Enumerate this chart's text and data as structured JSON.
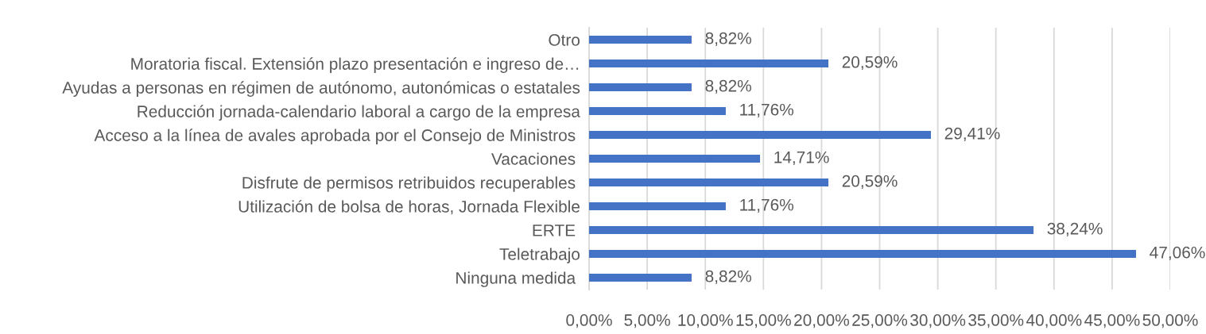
{
  "chart_data": {
    "type": "bar",
    "orientation": "horizontal",
    "categories": [
      "Otro",
      "Moratoria fiscal. Extensión plazo presentación e ingreso de…",
      "Ayudas a personas en régimen de autónomo, autonómicas o estatales",
      "Reducción jornada-calendario laboral a cargo de la empresa",
      "Acceso a la línea de avales aprobada por el Consejo de Ministros ",
      "Vacaciones ",
      "Disfrute de permisos retribuidos recuperables ",
      "Utilización de bolsa de horas, Jornada Flexible",
      "ERTE ",
      "Teletrabajo",
      "Ninguna medida "
    ],
    "values": [
      8.82,
      20.59,
      8.82,
      11.76,
      29.41,
      14.71,
      20.59,
      11.76,
      38.24,
      47.06,
      8.82
    ],
    "value_labels": [
      "8,82%",
      "20,59%",
      "8,82%",
      "11,76%",
      "29,41%",
      "14,71%",
      "20,59%",
      "11,76%",
      "38,24%",
      "47,06%",
      "8,82%"
    ],
    "color": "#4472c4",
    "xlim": [
      0,
      50
    ],
    "xticks": [
      {
        "value": 0,
        "label": "0,00%"
      },
      {
        "value": 5,
        "label": "5,00%"
      },
      {
        "value": 10,
        "label": "10,00%"
      },
      {
        "value": 15,
        "label": "15,00%"
      },
      {
        "value": 20,
        "label": "20,00%"
      },
      {
        "value": 25,
        "label": "25,00%"
      },
      {
        "value": 30,
        "label": "30,00%"
      },
      {
        "value": 35,
        "label": "35,00%"
      },
      {
        "value": 40,
        "label": "40,00%"
      },
      {
        "value": 45,
        "label": "45,00%"
      },
      {
        "value": 50,
        "label": "50,00%"
      }
    ],
    "grid": "x",
    "legend": false
  }
}
